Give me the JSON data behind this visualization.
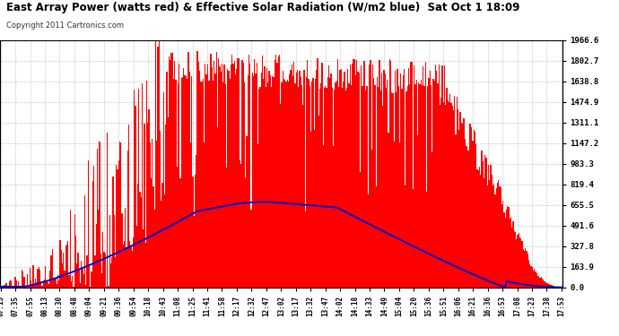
{
  "title": "East Array Power (watts red) & Effective Solar Radiation (W/m2 blue)  Sat Oct 1 18:09",
  "copyright": "Copyright 2011 Cartronics.com",
  "ylabel_right": [
    "0.0",
    "163.9",
    "327.8",
    "491.6",
    "655.5",
    "819.4",
    "983.3",
    "1147.2",
    "1311.1",
    "1474.9",
    "1638.8",
    "1802.7",
    "1966.6"
  ],
  "ymax": 1966.6,
  "ymin": 0.0,
  "background": "#ffffff",
  "plot_bg": "#ffffff",
  "bar_color": "#ff0000",
  "line_color": "#0000cc",
  "grid_color": "#888888",
  "xtick_labels": [
    "07:15",
    "07:35",
    "07:55",
    "08:13",
    "08:30",
    "08:48",
    "09:04",
    "09:21",
    "09:36",
    "09:54",
    "10:18",
    "10:43",
    "11:08",
    "11:25",
    "11:41",
    "11:58",
    "12:17",
    "12:32",
    "12:47",
    "13:02",
    "13:17",
    "13:32",
    "13:47",
    "14:02",
    "14:18",
    "14:33",
    "14:49",
    "15:04",
    "15:20",
    "15:36",
    "15:51",
    "16:06",
    "16:21",
    "16:36",
    "16:53",
    "17:08",
    "17:23",
    "17:38",
    "17:53"
  ],
  "num_points": 500,
  "solar_peak_wm2": 700,
  "power_peak_watts": 1900
}
